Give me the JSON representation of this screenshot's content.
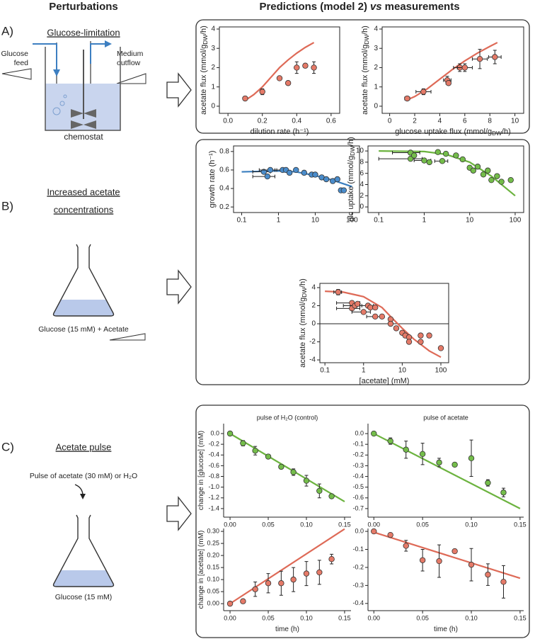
{
  "headings": {
    "left": "Perturbations",
    "right": [
      "Predictions (model 2)",
      "vs",
      "measurements"
    ]
  },
  "panels": [
    {
      "label": "A)",
      "title": [
        "Glucose-limitation"
      ],
      "feed": [
        "Glucose",
        "feed"
      ],
      "outflow": [
        "Medium",
        "outflow"
      ],
      "vessel": "chemostat"
    },
    {
      "label": "B)",
      "title": [
        "Increased acetate",
        "concentrations"
      ],
      "medium": "Glucose (15 mM) + Acetate"
    },
    {
      "label": "C)",
      "title": [
        "Acetate pulse"
      ],
      "pulse": "Pulse of acetate (30 mM) or H₂O",
      "medium": "Glucose (15 mM)"
    }
  ],
  "chart_data": [
    {
      "type": "scatter",
      "frame": "box",
      "xlabel": [
        "dilution rate (h⁻¹)"
      ],
      "ylabel": [
        "acetate flux (mmol/g",
        "DW",
        "/h)"
      ],
      "xlim": [
        -0.05,
        0.65
      ],
      "ylim": [
        -0.37,
        4.11
      ],
      "xticks": [
        {
          "value": 0,
          "label": "0.0"
        },
        0.2,
        0.4,
        0.6
      ],
      "yticks": [
        0,
        1,
        2,
        3,
        4
      ],
      "series": [
        {
          "style": "line",
          "color": "#de6a57",
          "x": [
            0.1,
            0.15,
            0.2,
            0.25,
            0.3,
            0.35,
            0.4,
            0.45,
            0.5
          ],
          "values": [
            0.3,
            0.6,
            1.0,
            1.5,
            2.0,
            2.4,
            2.75,
            3.05,
            3.3
          ]
        },
        {
          "style": "points",
          "color": "#e57a68",
          "x": [
            0.1,
            0.2,
            0.3,
            0.35,
            0.4,
            0.45,
            0.5
          ],
          "values": [
            0.4,
            0.75,
            1.45,
            1.2,
            2.0,
            2.1,
            2.0
          ],
          "yerr": [
            0.1,
            0.15,
            null,
            null,
            0.3,
            null,
            0.3
          ]
        }
      ]
    },
    {
      "type": "scatter",
      "frame": "box",
      "xlabel": [
        "glucose uptake flux (mmol/g",
        "DW",
        "/h)"
      ],
      "ylabel": [
        "acetate flux (mmol/g",
        "DW",
        "/h)"
      ],
      "xlim": [
        -0.6,
        10.7
      ],
      "ylim": [
        -0.37,
        4.11
      ],
      "xticks": [
        0,
        2,
        4,
        6,
        8,
        10
      ],
      "yticks": [
        0,
        1,
        2,
        3,
        4
      ],
      "series": [
        {
          "style": "line",
          "color": "#de6a57",
          "x": [
            1.3,
            2,
            3,
            4,
            5,
            6,
            7,
            8,
            8.6
          ],
          "values": [
            0.3,
            0.5,
            0.9,
            1.4,
            1.9,
            2.35,
            2.75,
            3.1,
            3.3
          ]
        },
        {
          "style": "points",
          "color": "#e57a68",
          "x": [
            1.4,
            2.7,
            4.6,
            4.7,
            5.6,
            6.0,
            7.2,
            8.4
          ],
          "values": [
            0.4,
            0.75,
            1.35,
            1.2,
            2.0,
            2.0,
            2.45,
            2.55
          ],
          "xerr": [
            0.2,
            0.6,
            0.3,
            null,
            0.5,
            0.6,
            0.6,
            0.5
          ],
          "yerr": [
            0.1,
            0.15,
            0.2,
            null,
            0.2,
            0.2,
            0.5,
            0.35
          ]
        }
      ]
    },
    {
      "type": "scatter",
      "frame": "box",
      "log_x": true,
      "ylabel": [
        "growth rate (h⁻¹)"
      ],
      "xlim": [
        0.06,
        160
      ],
      "ylim": [
        0.14,
        0.86
      ],
      "xticks": [
        0.1,
        1,
        10,
        100
      ],
      "yticks": [
        0.2,
        0.4,
        0.6,
        0.8
      ],
      "series": [
        {
          "style": "line",
          "color": "#3a7ebf",
          "x": [
            0.1,
            1,
            3,
            10,
            30,
            100
          ],
          "values": [
            0.58,
            0.59,
            0.58,
            0.54,
            0.49,
            0.42
          ]
        },
        {
          "style": "points",
          "color": "#4a8ccb",
          "x": [
            0.4,
            0.5,
            0.6,
            1.3,
            1.6,
            2,
            3,
            5,
            8,
            10,
            15,
            20,
            30,
            40,
            50,
            60
          ],
          "values": [
            0.58,
            0.53,
            0.6,
            0.6,
            0.6,
            0.57,
            0.6,
            0.57,
            0.55,
            0.55,
            0.52,
            0.5,
            0.48,
            0.5,
            0.38,
            0.38
          ],
          "xerr": [
            0.2,
            0.3,
            0.3,
            0.5,
            null,
            null,
            null,
            null,
            null,
            null,
            null,
            null,
            null,
            null,
            null,
            null
          ]
        }
      ]
    },
    {
      "type": "scatter",
      "frame": "box",
      "log_x": true,
      "ylabel": [
        "glc uptake (mmol/g",
        "DW",
        "/h)"
      ],
      "xlim": [
        0.058,
        154
      ],
      "ylim": [
        -1,
        10.9
      ],
      "xticks": [
        0.1,
        1,
        10,
        100
      ],
      "yticks": [
        0,
        2,
        4,
        6,
        8,
        10
      ],
      "series": [
        {
          "style": "line",
          "color": "#6cb33f",
          "x": [
            0.1,
            1,
            3,
            10,
            30,
            100
          ],
          "values": [
            10,
            9.9,
            9.4,
            8.0,
            5.5,
            2.0
          ]
        },
        {
          "style": "points",
          "color": "#74bd4a",
          "x": [
            0.5,
            0.5,
            0.6,
            1,
            1.3,
            2,
            2.5,
            3,
            5,
            7,
            10,
            12,
            15,
            20,
            25,
            30,
            40,
            50,
            80
          ],
          "values": [
            9.7,
            8.6,
            9.2,
            8.3,
            8.0,
            9.8,
            8.2,
            9.5,
            9.2,
            8.5,
            7.0,
            6.5,
            7.2,
            5.8,
            6.5,
            4.8,
            5.5,
            4.5,
            4.8
          ],
          "xerr": [
            0.3,
            0.4,
            null,
            0.4,
            null,
            null,
            0.8,
            null,
            null,
            null,
            null,
            null,
            null,
            null,
            null,
            null,
            null,
            null,
            null
          ]
        }
      ]
    },
    {
      "type": "scatter",
      "frame": "box",
      "log_x": true,
      "zero_line": true,
      "xlabel": [
        "[acetate] (mM)"
      ],
      "ylabel": [
        "acetate flux (mmol/g",
        "DW",
        "/h)"
      ],
      "xlim": [
        0.074,
        159
      ],
      "ylim": [
        -4.31,
        4.47
      ],
      "xticks": [
        0.1,
        1,
        10,
        100
      ],
      "yticks": [
        -4,
        -2,
        0,
        2,
        4
      ],
      "series": [
        {
          "style": "line",
          "color": "#de6a57",
          "x": [
            0.1,
            0.3,
            1,
            3,
            5,
            10,
            20,
            50,
            100
          ],
          "values": [
            3.6,
            3.5,
            3.0,
            1.8,
            0.8,
            -0.5,
            -1.7,
            -3,
            -3.7
          ]
        },
        {
          "style": "points",
          "color": "#e57a68",
          "x": [
            0.22,
            0.5,
            0.5,
            0.6,
            0.7,
            1,
            1.3,
            1.5,
            2,
            2,
            3,
            5,
            5,
            7,
            10,
            12,
            15,
            15,
            30,
            30,
            50,
            100
          ],
          "values": [
            3.5,
            2.3,
            1.7,
            2.0,
            2.2,
            1.3,
            2.0,
            1.8,
            0.8,
            1.8,
            0.8,
            0.5,
            0,
            -0.5,
            -1,
            -1.3,
            -1.5,
            -2,
            -1.3,
            -2,
            -1.3,
            -2.7
          ],
          "xerr": [
            0.05,
            0.3,
            0.3,
            0.3,
            null,
            0.5,
            0.5,
            null,
            0.8,
            null,
            null,
            null,
            null,
            null,
            null,
            null,
            null,
            null,
            null,
            null,
            null,
            null
          ],
          "yerr": [
            0.3,
            null,
            null,
            null,
            null,
            null,
            null,
            null,
            null,
            null,
            null,
            null,
            null,
            null,
            null,
            null,
            null,
            null,
            null,
            null,
            null,
            null
          ]
        }
      ]
    },
    {
      "type": "scatter",
      "frame": "axes",
      "title": "pulse of H₂O (control)",
      "ylabel": [
        "change in [glucose] (mM)"
      ],
      "xlim": [
        -0.0084,
        0.1584
      ],
      "ylim": [
        -1.56,
        0.185
      ],
      "xticks": [
        {
          "value": 0,
          "label": "0.00"
        },
        0.05,
        {
          "value": 0.1,
          "label": "0.10"
        },
        0.15
      ],
      "yticks": [
        {
          "value": 0,
          "label": "0.0"
        },
        -0.2,
        -0.4,
        -0.6,
        -0.8,
        {
          "value": -1,
          "label": "-1.0"
        },
        -1.2,
        -1.4
      ],
      "series": [
        {
          "style": "line",
          "color": "#6cb33f",
          "x": [
            0,
            0.15
          ],
          "values": [
            0,
            -1.27
          ]
        },
        {
          "style": "points",
          "color": "#74bd4a",
          "x": [
            0,
            0.017,
            0.033,
            0.05,
            0.067,
            0.083,
            0.1,
            0.117,
            0.133
          ],
          "values": [
            0,
            -0.18,
            -0.32,
            -0.43,
            -0.62,
            -0.72,
            -0.88,
            -1.07,
            -1.17
          ],
          "yerr": [
            null,
            0.05,
            0.08,
            0.03,
            0.04,
            0.06,
            0.1,
            0.13,
            0.03
          ]
        }
      ]
    },
    {
      "type": "scatter",
      "frame": "axes",
      "title": "pulse of acetate",
      "xlim": [
        -0.006,
        0.1537
      ],
      "ylim": [
        -0.78,
        0.093
      ],
      "xticks": [
        {
          "value": 0,
          "label": "0.00"
        },
        0.05,
        {
          "value": 0.1,
          "label": "0.10"
        },
        0.15
      ],
      "yticks": [
        {
          "value": 0,
          "label": "0.0"
        },
        -0.1,
        -0.2,
        -0.3,
        -0.4,
        -0.5,
        -0.6,
        -0.7
      ],
      "series": [
        {
          "style": "line",
          "color": "#6cb33f",
          "x": [
            0,
            0.15
          ],
          "values": [
            0,
            -0.7
          ]
        },
        {
          "style": "points",
          "color": "#74bd4a",
          "x": [
            0,
            0.017,
            0.033,
            0.05,
            0.067,
            0.083,
            0.1,
            0.117,
            0.133
          ],
          "values": [
            0,
            -0.07,
            -0.15,
            -0.19,
            -0.27,
            -0.29,
            -0.23,
            -0.46,
            -0.55
          ],
          "yerr": [
            null,
            0.03,
            0.08,
            0.1,
            0.04,
            null,
            0.17,
            0.03,
            0.04
          ]
        }
      ]
    },
    {
      "type": "scatter",
      "frame": "axes",
      "xlabel": [
        "time (h)"
      ],
      "ylabel": [
        "change in [acetate] (mM)"
      ],
      "xlim": [
        -0.0084,
        0.1584
      ],
      "ylim": [
        -0.029,
        0.312
      ],
      "xticks": [
        {
          "value": 0,
          "label": "0.00"
        },
        0.05,
        {
          "value": 0.1,
          "label": "0.10"
        },
        0.15
      ],
      "yticks": [
        {
          "value": 0,
          "label": "0.00"
        },
        0.05,
        {
          "value": 0.1,
          "label": "0.10"
        },
        0.15,
        {
          "value": 0.2,
          "label": "0.20"
        },
        0.25,
        {
          "value": 0.3,
          "label": "0.30"
        }
      ],
      "series": [
        {
          "style": "line",
          "color": "#de6a57",
          "x": [
            0,
            0.15
          ],
          "values": [
            0,
            0.31
          ]
        },
        {
          "style": "points",
          "color": "#e57a68",
          "x": [
            0,
            0.017,
            0.033,
            0.05,
            0.067,
            0.083,
            0.1,
            0.117,
            0.133
          ],
          "values": [
            0,
            0.01,
            0.06,
            0.085,
            0.085,
            0.1,
            0.125,
            0.13,
            0.185
          ],
          "yerr": [
            null,
            null,
            0.03,
            0.04,
            0.05,
            0.05,
            0.05,
            0.05,
            0.02
          ]
        }
      ]
    },
    {
      "type": "scatter",
      "frame": "axes",
      "xlabel": [
        "time (h)"
      ],
      "xlim": [
        -0.006,
        0.1537
      ],
      "ylim": [
        -0.44,
        0.016
      ],
      "xticks": [
        {
          "value": 0,
          "label": "0.00"
        },
        0.05,
        {
          "value": 0.1,
          "label": "0.10"
        },
        0.15
      ],
      "yticks": [
        {
          "value": 0,
          "label": "0.0"
        },
        -0.1,
        -0.2,
        -0.3,
        -0.4
      ],
      "series": [
        {
          "style": "line",
          "color": "#de6a57",
          "x": [
            0,
            0.15
          ],
          "values": [
            -0.005,
            -0.26
          ]
        },
        {
          "style": "points",
          "color": "#e57a68",
          "x": [
            0,
            0.017,
            0.033,
            0.05,
            0.067,
            0.083,
            0.1,
            0.117,
            0.133
          ],
          "values": [
            0,
            -0.02,
            -0.08,
            -0.16,
            -0.165,
            -0.11,
            -0.185,
            -0.24,
            -0.28
          ],
          "yerr": [
            null,
            null,
            0.03,
            0.06,
            0.09,
            null,
            0.09,
            0.06,
            0.09
          ]
        }
      ]
    }
  ]
}
